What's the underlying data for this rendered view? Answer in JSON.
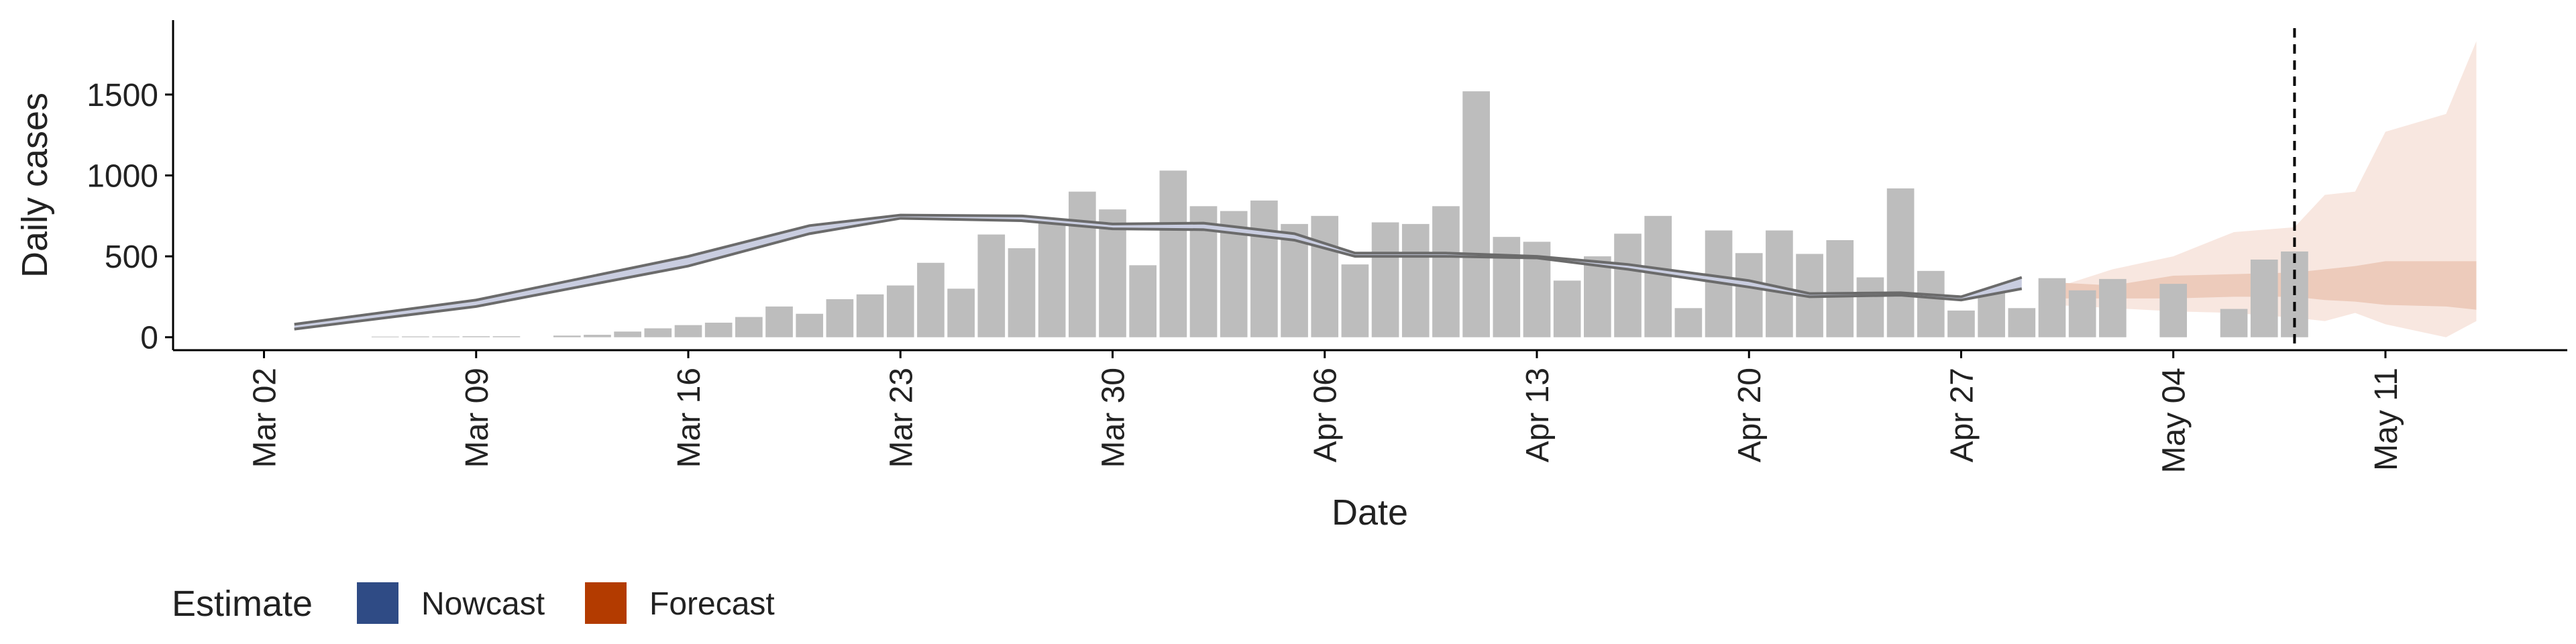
{
  "chart_data": {
    "type": "bar",
    "xlabel": "Date",
    "ylabel": "Daily cases",
    "xlim": [
      "Feb 28",
      "May 17"
    ],
    "xticks": [
      "Mar 02",
      "Mar 09",
      "Mar 16",
      "Mar 23",
      "Mar 30",
      "Apr 06",
      "Apr 13",
      "Apr 20",
      "Apr 27",
      "May 04",
      "May 11"
    ],
    "ylim": [
      -80,
      1960
    ],
    "yticks": [
      0,
      500,
      1000,
      1500
    ],
    "bars": {
      "color": "#bdbdbd",
      "x": [
        "Mar 06",
        "Mar 07",
        "Mar 08",
        "Mar 09",
        "Mar 10",
        "Mar 11",
        "Mar 12",
        "Mar 13",
        "Mar 14",
        "Mar 15",
        "Mar 16",
        "Mar 17",
        "Mar 18",
        "Mar 19",
        "Mar 20",
        "Mar 21",
        "Mar 22",
        "Mar 23",
        "Mar 24",
        "Mar 25",
        "Mar 26",
        "Mar 27",
        "Mar 28",
        "Mar 29",
        "Mar 30",
        "Mar 31",
        "Apr 01",
        "Apr 02",
        "Apr 03",
        "Apr 04",
        "Apr 05",
        "Apr 06",
        "Apr 07",
        "Apr 08",
        "Apr 09",
        "Apr 10",
        "Apr 11",
        "Apr 12",
        "Apr 13",
        "Apr 14",
        "Apr 15",
        "Apr 16",
        "Apr 17",
        "Apr 18",
        "Apr 19",
        "Apr 20",
        "Apr 21",
        "Apr 22",
        "Apr 23",
        "Apr 24",
        "Apr 25",
        "Apr 26",
        "Apr 27",
        "Apr 28",
        "Apr 29",
        "Apr 30",
        "May 01",
        "May 02",
        "May 03",
        "May 04",
        "May 05",
        "May 06",
        "May 07",
        "May 08"
      ],
      "values": [
        4,
        5,
        5,
        6,
        6,
        null,
        10,
        15,
        35,
        55,
        75,
        90,
        125,
        190,
        145,
        235,
        265,
        320,
        460,
        300,
        635,
        550,
        730,
        900,
        790,
        445,
        1030,
        810,
        780,
        845,
        700,
        750,
        450,
        710,
        700,
        810,
        1520,
        620,
        590,
        350,
        500,
        640,
        750,
        180,
        660,
        520,
        660,
        515,
        600,
        370,
        920,
        410,
        165,
        290,
        180,
        365,
        290,
        360,
        null,
        330,
        null,
        175,
        480,
        530
      ]
    },
    "nowcast": {
      "name": "Nowcast",
      "color": "#2f4b85",
      "band_color": "#c9cde0",
      "line_color": "#6b6b6b",
      "x": [
        "Mar 03",
        "Mar 09",
        "Mar 16",
        "Mar 20",
        "Mar 23",
        "Mar 27",
        "Mar 30",
        "Apr 02",
        "Apr 05",
        "Apr 07",
        "Apr 10",
        "Apr 13",
        "Apr 16",
        "Apr 20",
        "Apr 22",
        "Apr 25",
        "Apr 27",
        "Apr 29"
      ],
      "upper": [
        80,
        230,
        500,
        690,
        755,
        750,
        700,
        705,
        640,
        520,
        520,
        500,
        450,
        350,
        270,
        275,
        250,
        370
      ],
      "lower": [
        50,
        190,
        440,
        640,
        735,
        720,
        670,
        665,
        600,
        500,
        500,
        490,
        420,
        310,
        250,
        260,
        230,
        300
      ]
    },
    "forecast": {
      "name": "Forecast",
      "color": "#b33b00",
      "outer_color": "#f8e7e0",
      "inner_color": "#edcbbb",
      "x": [
        "Apr 30",
        "May 02",
        "May 04",
        "May 06",
        "May 08",
        "May 09",
        "May 10",
        "May 11",
        "May 13",
        "May 14"
      ],
      "upper": [
        300,
        420,
        500,
        650,
        680,
        880,
        900,
        1270,
        1380,
        1830
      ],
      "lower": [
        200,
        180,
        160,
        150,
        120,
        100,
        150,
        80,
        0,
        100
      ],
      "inner_upper": [
        340,
        320,
        380,
        390,
        400,
        420,
        440,
        470,
        470,
        470
      ],
      "inner_lower": [
        240,
        240,
        240,
        250,
        250,
        230,
        220,
        200,
        190,
        170
      ]
    },
    "vline": "May 08",
    "legend_title": "Estimate"
  }
}
